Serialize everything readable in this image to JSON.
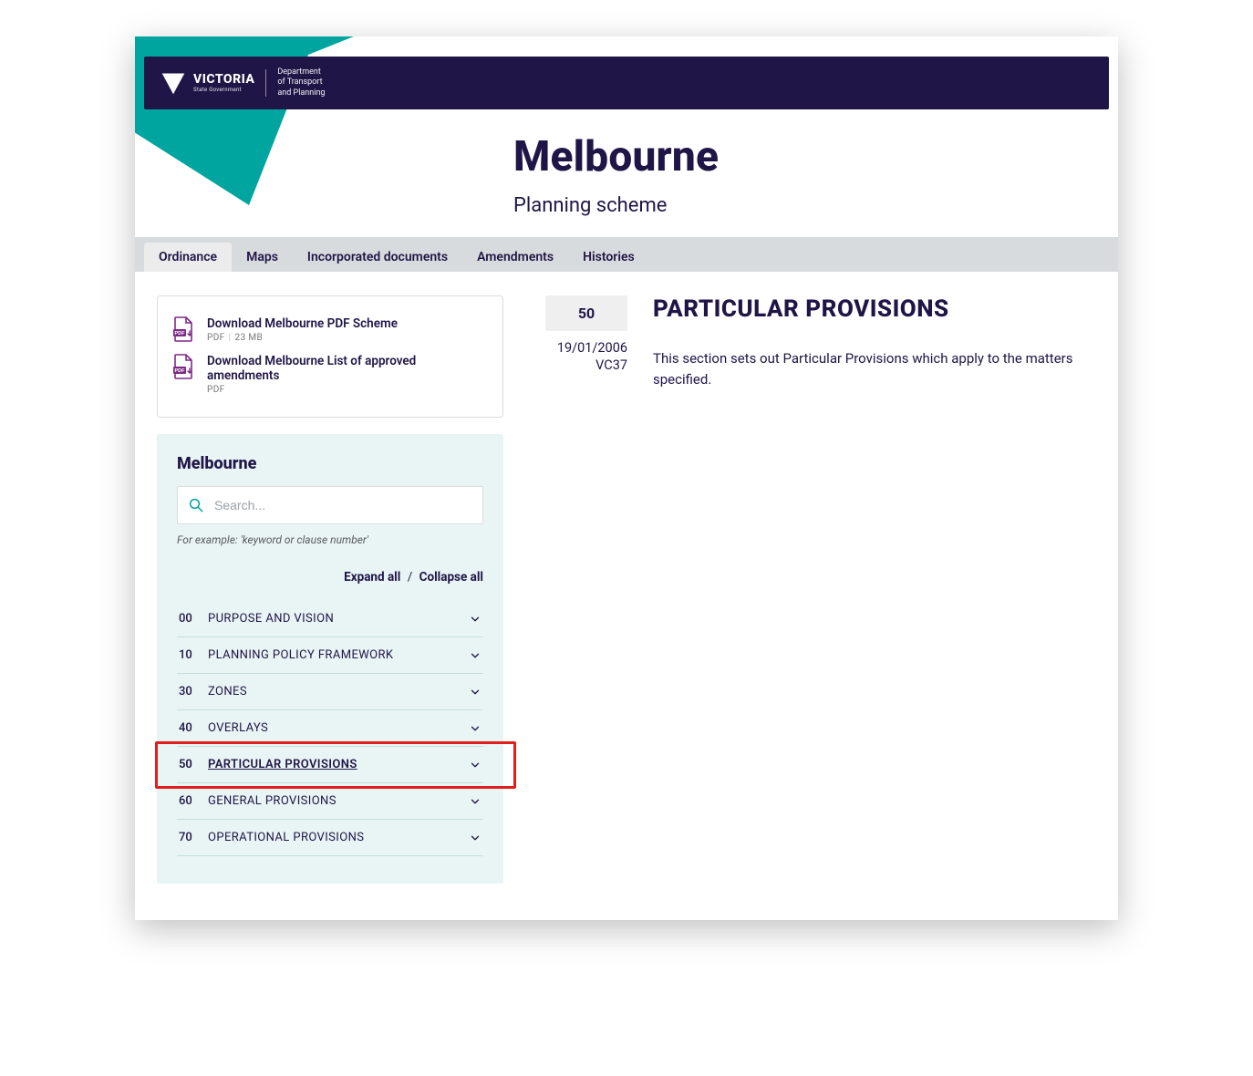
{
  "brand": {
    "logo_text": "VICTORIA",
    "logo_sub1": "State",
    "logo_sub2": "Government",
    "department_line1": "Department",
    "department_line2": "of Transport",
    "department_line3": "and Planning"
  },
  "hero": {
    "title": "Melbourne",
    "subtitle": "Planning scheme"
  },
  "tabs": [
    {
      "label": "Ordinance",
      "active": true
    },
    {
      "label": "Maps",
      "active": false
    },
    {
      "label": "Incorporated documents",
      "active": false
    },
    {
      "label": "Amendments",
      "active": false
    },
    {
      "label": "Histories",
      "active": false
    }
  ],
  "downloads": [
    {
      "title": "Download Melbourne PDF Scheme",
      "format": "PDF",
      "size": "23 MB"
    },
    {
      "title": "Download Melbourne List of approved amendments",
      "format": "PDF",
      "size": ""
    }
  ],
  "sidebar": {
    "heading": "Melbourne",
    "search_placeholder": "Search...",
    "hint": "For example: 'keyword or clause number'",
    "expand_label": "Expand all",
    "collapse_label": "Collapse all",
    "items": [
      {
        "code": "00",
        "label": "PURPOSE AND VISION"
      },
      {
        "code": "10",
        "label": "PLANNING POLICY FRAMEWORK"
      },
      {
        "code": "30",
        "label": "ZONES"
      },
      {
        "code": "40",
        "label": "OVERLAYS"
      },
      {
        "code": "50",
        "label": "PARTICULAR PROVISIONS",
        "highlight": true
      },
      {
        "code": "60",
        "label": "GENERAL PROVISIONS"
      },
      {
        "code": "70",
        "label": "OPERATIONAL PROVISIONS"
      }
    ]
  },
  "content": {
    "clause_number": "50",
    "date": "19/01/2006",
    "amendment": "VC37",
    "heading": "PARTICULAR PROVISIONS",
    "body": "This section sets out Particular Provisions which apply to the matters specified."
  },
  "colors": {
    "navy": "#201547",
    "teal": "#00a5a0",
    "teal_light": "#3fc6c2",
    "teal_pale": "#e9f5f5",
    "tabbar": "#d8dbdd",
    "highlight_border": "#e11d1d"
  }
}
